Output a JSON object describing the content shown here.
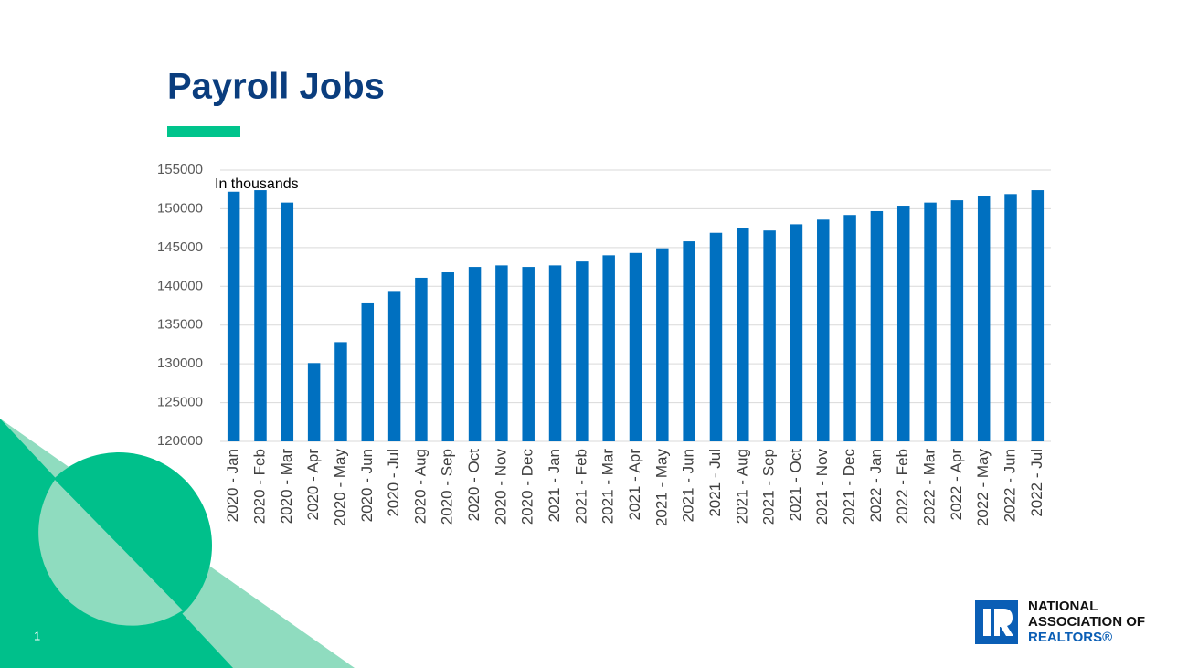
{
  "chart_data": {
    "type": "bar",
    "title": "Payroll Jobs",
    "annotation": "In thousands",
    "categories": [
      "2020 - Jan",
      "2020 - Feb",
      "2020 - Mar",
      "2020 - Apr",
      "2020 - May",
      "2020 - Jun",
      "2020 - Jul",
      "2020 - Aug",
      "2020 - Sep",
      "2020 - Oct",
      "2020 - Nov",
      "2020 - Dec",
      "2021 - Jan",
      "2021 - Feb",
      "2021 - Mar",
      "2021 - Apr",
      "2021 - May",
      "2021 - Jun",
      "2021 - Jul",
      "2021 - Aug",
      "2021 - Sep",
      "2021 - Oct",
      "2021 - Nov",
      "2021 - Dec",
      "2022 - Jan",
      "2022 - Feb",
      "2022 - Mar",
      "2022 - Apr",
      "2022 - May",
      "2022 - Jun",
      "2022 - Jul"
    ],
    "values": [
      152200,
      152400,
      150800,
      130100,
      132800,
      137800,
      139400,
      141100,
      141800,
      142500,
      142700,
      142500,
      142700,
      143200,
      144000,
      144300,
      144900,
      145800,
      146900,
      147500,
      147200,
      148000,
      148600,
      149200,
      149700,
      150400,
      150800,
      151100,
      151600,
      151900,
      152400
    ],
    "color": "#0070c0",
    "ylim": [
      120000,
      155000
    ],
    "yticks": [
      120000,
      125000,
      130000,
      135000,
      140000,
      145000,
      150000,
      155000
    ],
    "grid": true
  },
  "slide": {
    "page_number": "1",
    "logo": [
      "NATIONAL",
      "ASSOCIATION OF",
      "REALTORS®"
    ]
  }
}
